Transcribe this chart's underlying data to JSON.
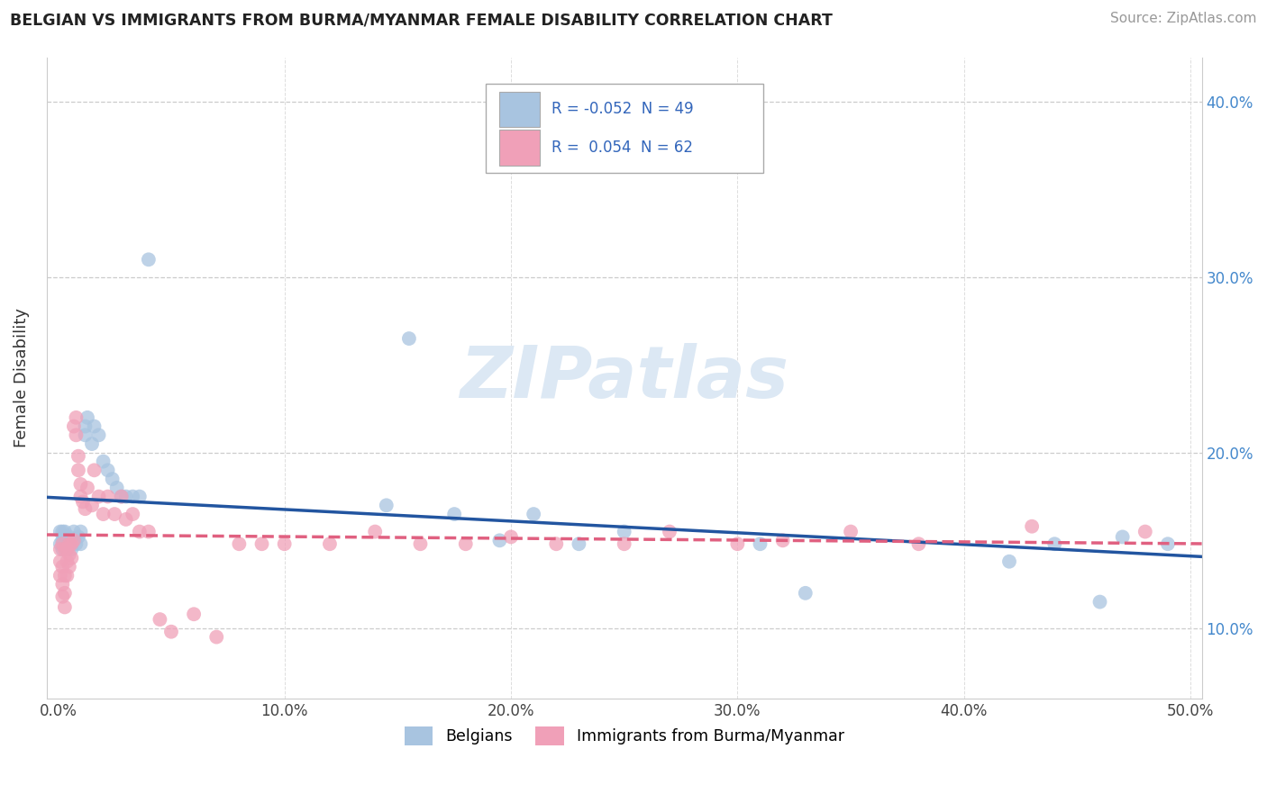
{
  "title": "BELGIAN VS IMMIGRANTS FROM BURMA/MYANMAR FEMALE DISABILITY CORRELATION CHART",
  "source": "Source: ZipAtlas.com",
  "xlabel": "",
  "ylabel": "Female Disability",
  "xlim": [
    -0.005,
    0.505
  ],
  "ylim": [
    0.06,
    0.425
  ],
  "xticks": [
    0.0,
    0.1,
    0.2,
    0.3,
    0.4,
    0.5
  ],
  "xtick_labels": [
    "0.0%",
    "10.0%",
    "20.0%",
    "30.0%",
    "40.0%",
    "50.0%"
  ],
  "yticks": [
    0.1,
    0.2,
    0.3,
    0.4
  ],
  "ytick_labels": [
    "10.0%",
    "20.0%",
    "30.0%",
    "40.0%"
  ],
  "right_yticks": [
    0.1,
    0.2,
    0.3,
    0.4
  ],
  "right_ytick_labels": [
    "10.0%",
    "20.0%",
    "30.0%",
    "40.0%"
  ],
  "legend_r1": "R = -0.052",
  "legend_n1": "N = 49",
  "legend_r2": "R =  0.054",
  "legend_n2": "N = 62",
  "color_belgian": "#a8c4e0",
  "color_burma": "#f0a0b8",
  "color_belgian_line": "#2255a0",
  "color_burma_line": "#e06080",
  "watermark_color": "#dce8f4",
  "belgians_x": [
    0.001,
    0.001,
    0.002,
    0.002,
    0.002,
    0.003,
    0.003,
    0.003,
    0.004,
    0.004,
    0.005,
    0.005,
    0.006,
    0.006,
    0.007,
    0.007,
    0.008,
    0.009,
    0.01,
    0.01,
    0.012,
    0.012,
    0.013,
    0.015,
    0.016,
    0.018,
    0.02,
    0.022,
    0.024,
    0.026,
    0.028,
    0.03,
    0.033,
    0.036,
    0.04,
    0.145,
    0.155,
    0.175,
    0.195,
    0.21,
    0.23,
    0.25,
    0.31,
    0.33,
    0.42,
    0.44,
    0.46,
    0.47,
    0.49
  ],
  "belgians_y": [
    0.155,
    0.148,
    0.145,
    0.15,
    0.155,
    0.148,
    0.152,
    0.155,
    0.145,
    0.15,
    0.148,
    0.152,
    0.145,
    0.148,
    0.15,
    0.155,
    0.148,
    0.152,
    0.155,
    0.148,
    0.21,
    0.215,
    0.22,
    0.205,
    0.215,
    0.21,
    0.195,
    0.19,
    0.185,
    0.18,
    0.175,
    0.175,
    0.175,
    0.175,
    0.31,
    0.17,
    0.265,
    0.165,
    0.15,
    0.165,
    0.148,
    0.155,
    0.148,
    0.12,
    0.138,
    0.148,
    0.115,
    0.152,
    0.148
  ],
  "burma_x": [
    0.001,
    0.001,
    0.001,
    0.002,
    0.002,
    0.002,
    0.002,
    0.003,
    0.003,
    0.003,
    0.003,
    0.004,
    0.004,
    0.004,
    0.005,
    0.005,
    0.005,
    0.006,
    0.006,
    0.007,
    0.007,
    0.008,
    0.008,
    0.009,
    0.009,
    0.01,
    0.01,
    0.011,
    0.012,
    0.013,
    0.015,
    0.016,
    0.018,
    0.02,
    0.022,
    0.025,
    0.028,
    0.03,
    0.033,
    0.036,
    0.04,
    0.045,
    0.05,
    0.06,
    0.07,
    0.08,
    0.09,
    0.1,
    0.12,
    0.14,
    0.16,
    0.18,
    0.2,
    0.22,
    0.25,
    0.27,
    0.3,
    0.32,
    0.35,
    0.38,
    0.43,
    0.48
  ],
  "burma_y": [
    0.145,
    0.138,
    0.13,
    0.148,
    0.135,
    0.125,
    0.118,
    0.145,
    0.13,
    0.12,
    0.112,
    0.145,
    0.138,
    0.13,
    0.148,
    0.142,
    0.135,
    0.148,
    0.14,
    0.15,
    0.215,
    0.22,
    0.21,
    0.198,
    0.19,
    0.182,
    0.175,
    0.172,
    0.168,
    0.18,
    0.17,
    0.19,
    0.175,
    0.165,
    0.175,
    0.165,
    0.175,
    0.162,
    0.165,
    0.155,
    0.155,
    0.105,
    0.098,
    0.108,
    0.095,
    0.148,
    0.148,
    0.148,
    0.148,
    0.155,
    0.148,
    0.148,
    0.152,
    0.148,
    0.148,
    0.155,
    0.148,
    0.15,
    0.155,
    0.148,
    0.158,
    0.155
  ]
}
